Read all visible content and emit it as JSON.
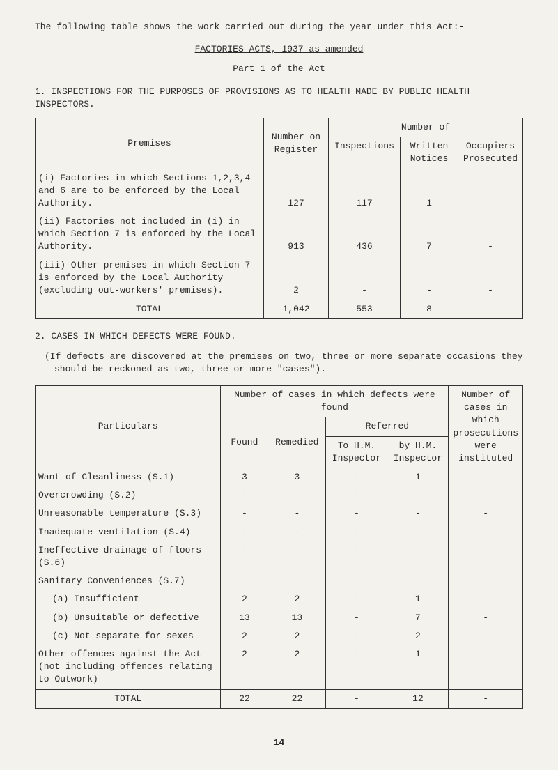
{
  "intro": "The following table shows the work carried out during the year under this Act:-",
  "heading1": "FACTORIES ACTS, 1937 as amended",
  "heading2": "Part 1 of the Act",
  "section1_title": "1. INSPECTIONS FOR THE PURPOSES OF PROVISIONS AS TO HEALTH MADE BY PUBLIC HEALTH INSPECTORS.",
  "table1": {
    "headers": {
      "premises": "Premises",
      "number_on_register": "Number on Register",
      "number_of": "Number of",
      "inspections": "Inspections",
      "written_notices": "Written Notices",
      "occupiers_prosecuted": "Occupiers Prosecuted"
    },
    "rows": [
      {
        "label": "(i)   Factories in which Sections 1,2,3,4 and 6 are to be enforced by the Local Authority.",
        "register": "127",
        "inspections": "117",
        "notices": "1",
        "prosecuted": "-"
      },
      {
        "label": "(ii)  Factories not included in (i) in which Section 7 is enforced by the Local Authority.",
        "register": "913",
        "inspections": "436",
        "notices": "7",
        "prosecuted": "-"
      },
      {
        "label": "(iii) Other premises in which Section 7 is enforced by the Local Authority (excluding out-workers' premises).",
        "register": "2",
        "inspections": "-",
        "notices": "-",
        "prosecuted": "-"
      }
    ],
    "total": {
      "label": "TOTAL",
      "register": "1,042",
      "inspections": "553",
      "notices": "8",
      "prosecuted": "-"
    }
  },
  "section2_title": "2. CASES IN WHICH DEFECTS WERE FOUND.",
  "section2_note": "(If defects are discovered at the premises on two, three or more separate occasions they should be reckoned as two, three or more \"cases\").",
  "table2": {
    "headers": {
      "particulars": "Particulars",
      "num_cases": "Number of cases in which defects were found",
      "found": "Found",
      "remedied": "Remedied",
      "referred": "Referred",
      "to_hm": "To H.M. Inspector",
      "by_hm": "by H.M. Inspector",
      "num_prosecutions": "Number of cases in which prosecutions were instituted"
    },
    "rows": [
      {
        "label": "Want of Cleanliness (S.1)",
        "found": "3",
        "remedied": "3",
        "to_hm": "-",
        "by_hm": "1",
        "pros": "-"
      },
      {
        "label": "Overcrowding (S.2)",
        "found": "-",
        "remedied": "-",
        "to_hm": "-",
        "by_hm": "-",
        "pros": "-"
      },
      {
        "label": "Unreasonable temperature (S.3)",
        "found": "-",
        "remedied": "-",
        "to_hm": "-",
        "by_hm": "-",
        "pros": "-"
      },
      {
        "label": "Inadequate ventilation (S.4)",
        "found": "-",
        "remedied": "-",
        "to_hm": "-",
        "by_hm": "-",
        "pros": "-"
      },
      {
        "label": "Ineffective drainage of floors (S.6)",
        "found": "-",
        "remedied": "-",
        "to_hm": "-",
        "by_hm": "-",
        "pros": "-"
      },
      {
        "label": "Sanitary Conveniences (S.7)",
        "found": "",
        "remedied": "",
        "to_hm": "",
        "by_hm": "",
        "pros": ""
      },
      {
        "label": "(a) Insufficient",
        "sub": true,
        "found": "2",
        "remedied": "2",
        "to_hm": "-",
        "by_hm": "1",
        "pros": "-"
      },
      {
        "label": "(b) Unsuitable or defective",
        "sub": true,
        "found": "13",
        "remedied": "13",
        "to_hm": "-",
        "by_hm": "7",
        "pros": "-"
      },
      {
        "label": "(c) Not separate for sexes",
        "sub": true,
        "found": "2",
        "remedied": "2",
        "to_hm": "-",
        "by_hm": "2",
        "pros": "-"
      },
      {
        "label": "Other offences against the Act (not including offences relating to Outwork)",
        "found": "2",
        "remedied": "2",
        "to_hm": "-",
        "by_hm": "1",
        "pros": "-"
      }
    ],
    "total": {
      "label": "TOTAL",
      "found": "22",
      "remedied": "22",
      "to_hm": "-",
      "by_hm": "12",
      "pros": "-"
    }
  },
  "page_number": "14"
}
